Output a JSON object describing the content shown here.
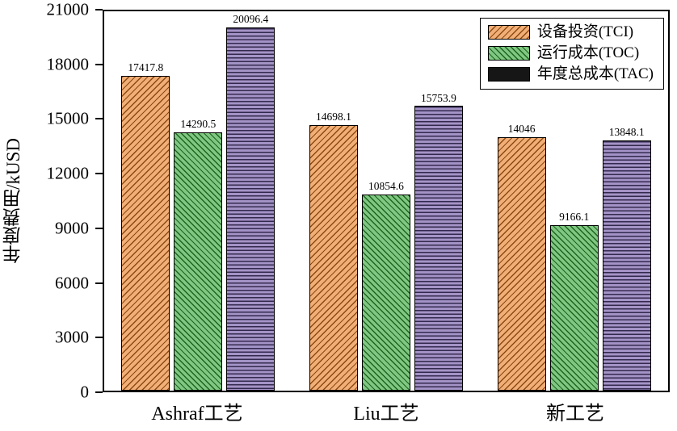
{
  "chart_data": {
    "type": "bar",
    "title": "",
    "ylabel": "年度费用/kUSD",
    "xlabel": "",
    "ylim": [
      0,
      21000
    ],
    "yticks": [
      0,
      3000,
      6000,
      9000,
      12000,
      15000,
      18000,
      21000
    ],
    "categories": [
      "Ashraf工艺",
      "Liu工艺",
      "新工艺"
    ],
    "series": [
      {
        "name": "设备投资(TCI)",
        "hatch": "diag-up",
        "color": "#F2AE77",
        "line_color": "#8A4A12",
        "values": [
          17417.8,
          14698.1,
          14046
        ]
      },
      {
        "name": "运行成本(TOC)",
        "hatch": "diag-down",
        "color": "#80C783",
        "line_color": "#1D641D",
        "values": [
          14290.5,
          10854.6,
          9166.1
        ]
      },
      {
        "name": "年度总成本(TAC)",
        "hatch": "horizontal",
        "color": "#A493C6",
        "line_color": "#33294E",
        "legend_fill": "#161616",
        "values": [
          20096.4,
          15753.9,
          13848.1
        ]
      }
    ],
    "value_labels": true,
    "grid": false,
    "legend_position": "top-right"
  }
}
